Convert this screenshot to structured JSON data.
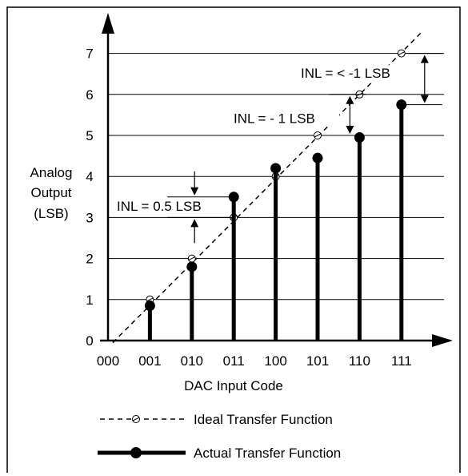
{
  "chart_data": {
    "type": "line",
    "xlabel": "DAC Input Code",
    "ylabel_lines": [
      "Analog",
      "Output",
      "(LSB)"
    ],
    "x_ticks": [
      "000",
      "001",
      "010",
      "011",
      "100",
      "101",
      "110",
      "111"
    ],
    "y_ticks": [
      "0",
      "1",
      "2",
      "3",
      "4",
      "5",
      "6",
      "7"
    ],
    "ylim": [
      0,
      7.5
    ],
    "grid": true,
    "series": [
      {
        "name": "Ideal Transfer Function",
        "style": "dashed",
        "marker": "open-circle",
        "x": [
          "000",
          "001",
          "010",
          "011",
          "100",
          "101",
          "110",
          "111"
        ],
        "values": [
          0,
          1,
          2,
          3,
          4,
          5,
          6,
          7
        ]
      },
      {
        "name": "Actual Transfer Function",
        "style": "thick-stem",
        "marker": "filled-circle",
        "x": [
          "001",
          "010",
          "011",
          "100",
          "101",
          "110",
          "111"
        ],
        "values": [
          0.85,
          1.8,
          3.5,
          4.2,
          4.45,
          4.95,
          5.75
        ]
      }
    ],
    "annotations": [
      {
        "text": "INL = 0.5 LSB",
        "code": "011",
        "ideal": 3,
        "actual": 3.5
      },
      {
        "text": "INL = - 1 LSB",
        "code": "110",
        "ideal": 6,
        "actual": 5
      },
      {
        "text": "INL = < -1 LSB",
        "code": "111",
        "ideal": 7,
        "actual": 5.75
      }
    ],
    "legend": {
      "position": "bottom",
      "ideal_label": "Ideal Transfer Function",
      "actual_label": "Actual Transfer Function"
    }
  }
}
